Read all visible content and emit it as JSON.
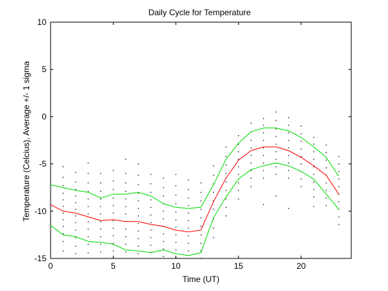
{
  "chart_data": {
    "type": "line",
    "title": "Daily Cycle for Temperature",
    "xlabel": "Time (UT)",
    "ylabel": "Temperature (Celcius), Average +/- 1 sigma",
    "xlim": [
      0,
      24
    ],
    "ylim": [
      -15,
      10
    ],
    "x_ticks": [
      0,
      5,
      10,
      15,
      20
    ],
    "y_ticks": [
      -15,
      -10,
      -5,
      0,
      5,
      10
    ],
    "grid": false,
    "legend": "none",
    "x": [
      0,
      1,
      2,
      3,
      4,
      5,
      6,
      7,
      8,
      9,
      10,
      11,
      12,
      13,
      14,
      15,
      16,
      17,
      18,
      19,
      20,
      21,
      22,
      23
    ],
    "series": [
      {
        "color": "#ff0000",
        "values": [
          -9.3,
          -10.0,
          -10.2,
          -10.6,
          -11.0,
          -10.9,
          -11.1,
          -11.1,
          -11.4,
          -11.6,
          -12.0,
          -12.2,
          -12.0,
          -9.0,
          -6.5,
          -4.6,
          -3.6,
          -3.2,
          -3.2,
          -3.6,
          -4.3,
          -5.2,
          -6.2,
          -8.2
        ]
      },
      {
        "color": "#00dd00",
        "values": [
          -7.2,
          -7.5,
          -7.8,
          -8.0,
          -8.6,
          -8.2,
          -8.2,
          -8.0,
          -8.4,
          -9.2,
          -9.6,
          -9.7,
          -9.6,
          -7.2,
          -4.5,
          -2.8,
          -1.6,
          -1.2,
          -1.2,
          -1.5,
          -2.2,
          -3.2,
          -4.3,
          -6.3
        ]
      },
      {
        "color": "#00dd00",
        "values": [
          -11.5,
          -12.5,
          -12.7,
          -13.2,
          -13.3,
          -13.5,
          -14.1,
          -14.2,
          -14.4,
          -14.1,
          -14.5,
          -14.7,
          -14.4,
          -10.7,
          -8.5,
          -6.6,
          -5.6,
          -5.2,
          -4.9,
          -5.2,
          -5.8,
          -6.6,
          -8.2,
          -9.8
        ]
      }
    ],
    "scatter": [
      {
        "x": 1,
        "y": [
          -5.3,
          -6.4,
          -7.3,
          -8.1,
          -8.8,
          -9.5,
          -10.2,
          -10.9,
          -11.6,
          -12.4,
          -13.2,
          -14.2
        ]
      },
      {
        "x": 2,
        "y": [
          -5.9,
          -6.9,
          -7.7,
          -8.4,
          -9.1,
          -9.8,
          -10.5,
          -11.2,
          -12.0,
          -12.8,
          -13.7,
          -14.5
        ]
      },
      {
        "x": 3,
        "y": [
          -4.9,
          -6.0,
          -7.0,
          -7.9,
          -8.7,
          -9.5,
          -10.3,
          -11.1,
          -11.9,
          -12.7,
          -13.5,
          -14.4
        ]
      },
      {
        "x": 4,
        "y": [
          -6.0,
          -7.0,
          -7.9,
          -8.7,
          -9.5,
          -10.3,
          -11.1,
          -11.9,
          -12.7,
          -13.5,
          -14.3
        ]
      },
      {
        "x": 5,
        "y": [
          -5.7,
          -6.8,
          -7.7,
          -8.6,
          -9.4,
          -10.2,
          -11.0,
          -11.8,
          -12.6,
          -13.4,
          -14.2
        ]
      },
      {
        "x": 6,
        "y": [
          -4.5,
          -6.0,
          -7.0,
          -7.9,
          -8.7,
          -9.5,
          -10.3,
          -11.1,
          -11.9,
          -12.7,
          -13.5,
          -14.3
        ]
      },
      {
        "x": 7,
        "y": [
          -5.0,
          -6.2,
          -7.2,
          -8.1,
          -8.9,
          -9.7,
          -10.5,
          -11.3,
          -12.1,
          -12.9,
          -13.7,
          -14.5
        ]
      },
      {
        "x": 8,
        "y": [
          -6.1,
          -7.1,
          -8.0,
          -8.8,
          -9.6,
          -10.4,
          -11.2,
          -12.0,
          -12.8,
          -13.6,
          -14.4
        ]
      },
      {
        "x": 9,
        "y": [
          -6.5,
          -7.5,
          -8.4,
          -9.2,
          -10.0,
          -10.8,
          -11.6,
          -12.4,
          -13.2,
          -14.0,
          -14.8
        ]
      },
      {
        "x": 10,
        "y": [
          -6.1,
          -7.3,
          -8.3,
          -9.2,
          -10.1,
          -10.9,
          -11.7,
          -12.5,
          -13.3,
          -14.1,
          -14.9
        ]
      },
      {
        "x": 11,
        "y": [
          -6.7,
          -7.7,
          -8.6,
          -9.4,
          -10.2,
          -11.0,
          -11.8,
          -12.6,
          -13.4,
          -14.2
        ]
      },
      {
        "x": 12,
        "y": [
          -7.0,
          -8.0,
          -8.9,
          -9.8,
          -10.7,
          -11.6,
          -12.5,
          -13.4,
          -14.2,
          -15.0
        ]
      },
      {
        "x": 13,
        "y": [
          -5.2,
          -6.2,
          -7.1,
          -8.0,
          -8.9,
          -9.8,
          -10.8,
          -11.8,
          -12.8
        ]
      },
      {
        "x": 14,
        "y": [
          -3.2,
          -4.2,
          -5.1,
          -6.0,
          -6.9,
          -7.8,
          -8.7,
          -9.6,
          -10.5
        ]
      },
      {
        "x": 15,
        "y": [
          -2.0,
          -2.9,
          -3.7,
          -4.5,
          -5.3,
          -6.1,
          -7.0,
          -7.8,
          -8.7
        ]
      },
      {
        "x": 16,
        "y": [
          -0.7,
          -1.6,
          -2.5,
          -3.3,
          -4.1,
          -4.9,
          -5.7,
          -6.5,
          -7.4
        ]
      },
      {
        "x": 17,
        "y": [
          -0.2,
          -0.9,
          -1.7,
          -2.5,
          -3.3,
          -4.1,
          -4.9,
          -5.7,
          -6.5,
          -9.3
        ]
      },
      {
        "x": 18,
        "y": [
          0.5,
          -0.4,
          -1.3,
          -2.1,
          -2.9,
          -3.7,
          -4.5,
          -5.3,
          -6.1,
          -8.4
        ]
      },
      {
        "x": 19,
        "y": [
          -0.1,
          -0.9,
          -1.7,
          -2.5,
          -3.3,
          -4.1,
          -4.9,
          -5.7,
          -6.5,
          -9.7
        ]
      },
      {
        "x": 20,
        "y": [
          -1.0,
          -1.8,
          -2.6,
          -3.4,
          -4.2,
          -5.0,
          -5.8,
          -6.6,
          -7.4
        ]
      },
      {
        "x": 21,
        "y": [
          -2.2,
          -2.9,
          -3.7,
          -4.5,
          -5.3,
          -6.1,
          -6.9,
          -7.7,
          -8.5,
          -9.5
        ]
      },
      {
        "x": 22,
        "y": [
          -3.0,
          -3.8,
          -4.6,
          -5.4,
          -6.2,
          -7.0,
          -7.8,
          -8.6,
          -9.4
        ]
      },
      {
        "x": 23,
        "y": [
          -4.2,
          -5.0,
          -5.8,
          -6.6,
          -7.4,
          -8.2,
          -9.0,
          -9.8,
          -10.6,
          -11.4
        ]
      }
    ]
  }
}
